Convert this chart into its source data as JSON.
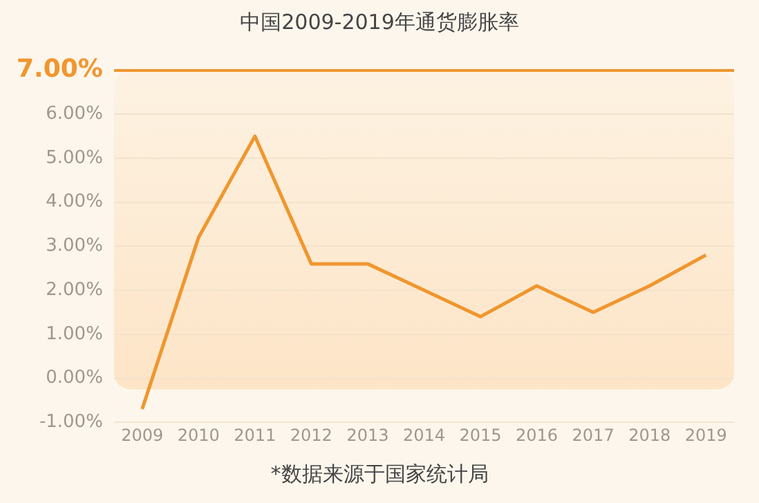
{
  "chart_data": {
    "type": "line",
    "title": "中国2009-2019年通货膨胀率",
    "categories": [
      "2009",
      "2010",
      "2011",
      "2012",
      "2013",
      "2014",
      "2015",
      "2016",
      "2017",
      "2018",
      "2019"
    ],
    "series": [
      {
        "color": "#f0962e",
        "values": [
          -0.7,
          3.2,
          5.5,
          2.6,
          2.6,
          2.0,
          1.4,
          2.1,
          1.5,
          2.1,
          2.8
        ]
      }
    ],
    "ylim": [
      -1,
      7
    ],
    "yticks": [
      {
        "value": -1,
        "label": "-1.00%"
      },
      {
        "value": 0,
        "label": "0.00%"
      },
      {
        "value": 1,
        "label": "1.00%"
      },
      {
        "value": 2,
        "label": "2.00%"
      },
      {
        "value": 3,
        "label": "3.00%"
      },
      {
        "value": 4,
        "label": "4.00%"
      },
      {
        "value": 5,
        "label": "5.00%"
      },
      {
        "value": 6,
        "label": "6.00%"
      },
      {
        "value": 7,
        "label": "7.00%"
      }
    ],
    "grid": "y",
    "marker": "none",
    "line_style": "solid",
    "legend": false,
    "annotations": [
      "*数据来源于国家统计局"
    ]
  }
}
